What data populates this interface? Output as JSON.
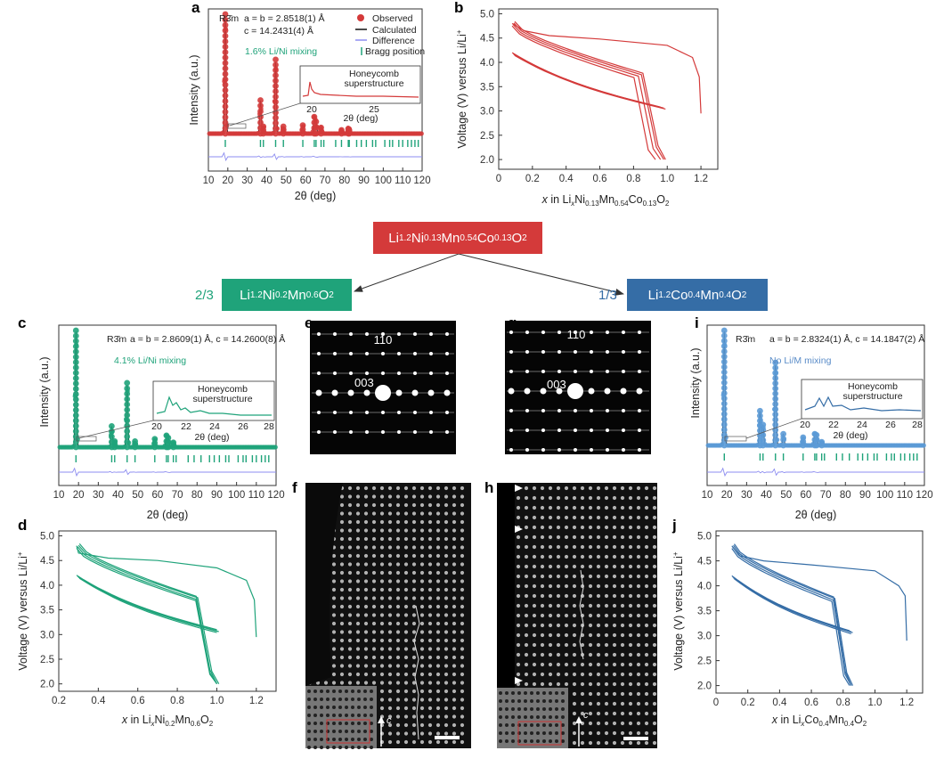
{
  "panel_labels": {
    "a": "a",
    "b": "b",
    "c": "c",
    "d": "d",
    "e": "e",
    "f": "f",
    "g": "g",
    "h": "h",
    "i": "i",
    "j": "j"
  },
  "colors": {
    "red": "#d43a3a",
    "green": "#1fa37a",
    "blue": "#356da6",
    "diff": "#8e8ef0"
  },
  "schematic": {
    "parent": {
      "main": "Li",
      "s1": "1.2",
      "m2": "Ni",
      "s2": "0.13",
      "m3": "Mn",
      "s3": "0.54",
      "m4": "Co",
      "s4": "0.13",
      "m5": "O",
      "s5": "2"
    },
    "left": {
      "fraction": "2/3",
      "main": "Li",
      "s1": "1.2",
      "m2": "Ni",
      "s2": "0.2",
      "m3": "Mn",
      "s3": "0.6",
      "m4": "O",
      "s4": "2"
    },
    "right": {
      "fraction": "1/3",
      "main": "Li",
      "s1": "1.2",
      "m2": "Co",
      "s2": "0.4",
      "m3": "Mn",
      "s3": "0.4",
      "m4": "O",
      "s4": "2"
    }
  },
  "xrd_a": {
    "space_group": "R3̄m",
    "lattice_a": "a = b = 2.8518(1) Å",
    "lattice_c": "c = 14.2431(4) Å",
    "mixing": "1.6% Li/Ni mixing",
    "inset_title_1": "Honeycomb",
    "inset_title_2": "superstructure",
    "legend": [
      "Observed",
      "Calculated",
      "Difference",
      "Bragg position"
    ],
    "ylabel": "Intensity (a.u.)",
    "xlabel": "2θ (deg)",
    "inset_ticks": [
      "20",
      "25"
    ],
    "inset_xlabel": "2θ (deg)"
  },
  "xrd_c": {
    "space_group": "R3̄m",
    "lattice": "a = b = 2.8609(1) Å, c = 14.2600(8) Å",
    "mixing": "4.1% Li/Ni mixing",
    "inset_title_1": "Honeycomb",
    "inset_title_2": "superstructure",
    "ylabel": "Intensity (a.u.)",
    "xlabel": "2θ (deg)",
    "inset_ticks": [
      "20",
      "22",
      "24",
      "26",
      "28"
    ],
    "inset_xlabel": "2θ (deg)"
  },
  "xrd_i": {
    "space_group": "R3̄m",
    "lattice": "a = b = 2.8324(1) Å, c = 14.1847(2) Å",
    "mixing": "No Li/M mixing",
    "inset_title_1": "Honeycomb",
    "inset_title_2": "superstructure",
    "ylabel": "Intensity (a.u.)",
    "xlabel": "2θ (deg)",
    "inset_ticks": [
      "20",
      "22",
      "24",
      "26",
      "28"
    ],
    "inset_xlabel": "2θ (deg)"
  },
  "electron": {
    "e_110": "110",
    "e_003": "003",
    "g_110": "110",
    "g_003": "003",
    "f_axis": "c",
    "h_axis": "c"
  },
  "ylabel_voltage": "Voltage (V) versus Li/Li",
  "ylabel_sup": "+",
  "xlabels": {
    "b": {
      "pre": "x in Li",
      "sub1": "x",
      "m2": "Ni",
      "sub2": "0.13",
      "m3": "Mn",
      "sub3": "0.54",
      "m4": "Co",
      "sub4": "0.13",
      "m5": "O",
      "sub5": "2"
    },
    "d": {
      "pre": "x in Li",
      "sub1": "x",
      "m2": "Ni",
      "sub2": "0.2",
      "m3": "Mn",
      "sub3": "0.6",
      "m4": "O",
      "sub4": "2"
    },
    "j": {
      "pre": "x in Li",
      "sub1": "x",
      "m2": "Co",
      "sub2": "0.4",
      "m3": "Mn",
      "sub3": "0.4",
      "m4": "O",
      "sub4": "2"
    }
  },
  "chart_data": [
    {
      "id": "a",
      "type": "line",
      "xlim": [
        10,
        120
      ],
      "xticks": [
        "10",
        "20",
        "30",
        "40",
        "50",
        "60",
        "70",
        "80",
        "90",
        "100",
        "110",
        "120"
      ],
      "peaks": [
        [
          18.7,
          1.0
        ],
        [
          36.8,
          0.28
        ],
        [
          38.3,
          0.06
        ],
        [
          44.6,
          0.62
        ],
        [
          48.6,
          0.06
        ],
        [
          58.6,
          0.07
        ],
        [
          64.5,
          0.14
        ],
        [
          65.4,
          0.1
        ],
        [
          68.0,
          0.05
        ],
        [
          78.5,
          0.03
        ],
        [
          82.0,
          0.04
        ],
        [
          82.5,
          0.03
        ]
      ],
      "bragg": [
        18.7,
        36.8,
        38.3,
        44.6,
        48.6,
        58.6,
        64.5,
        65.4,
        68.0,
        69.4,
        75.5,
        78.5,
        82.0,
        82.5,
        86.3,
        88.7,
        91.3,
        94.5,
        96.1,
        100.8,
        103.3,
        104.8,
        108.0,
        110.0,
        112.6,
        114.5,
        116.3,
        118.0
      ]
    },
    {
      "id": "b",
      "type": "line",
      "xlim": [
        0,
        1.3
      ],
      "ylim": [
        1.8,
        5.1
      ],
      "xticks": [
        "0",
        "0.2",
        "0.4",
        "0.6",
        "0.8",
        "1.0",
        "1.2"
      ],
      "yticks": [
        "2.0",
        "2.5",
        "3.0",
        "3.5",
        "4.0",
        "4.5",
        "5.0"
      ],
      "cycle1_charge": [
        [
          1.2,
          2.95
        ],
        [
          1.19,
          3.7
        ],
        [
          1.15,
          4.1
        ],
        [
          1.0,
          4.35
        ],
        [
          0.6,
          4.48
        ],
        [
          0.3,
          4.55
        ],
        [
          0.15,
          4.65
        ],
        [
          0.08,
          4.8
        ]
      ],
      "discharge_end": [
        0.93,
        0.96,
        0.98,
        0.99
      ]
    },
    {
      "id": "c",
      "type": "line",
      "xlim": [
        10,
        120
      ],
      "xticks": [
        "10",
        "20",
        "30",
        "40",
        "50",
        "60",
        "70",
        "80",
        "90",
        "100",
        "110",
        "120"
      ],
      "peaks": [
        [
          18.7,
          1.0
        ],
        [
          36.8,
          0.18
        ],
        [
          38.3,
          0.05
        ],
        [
          44.6,
          0.55
        ],
        [
          48.6,
          0.05
        ],
        [
          58.6,
          0.07
        ],
        [
          64.5,
          0.1
        ],
        [
          65.4,
          0.08
        ],
        [
          68.0,
          0.04
        ]
      ],
      "bragg": [
        18.7,
        36.8,
        38.3,
        44.6,
        48.6,
        58.6,
        64.5,
        65.4,
        68.0,
        69.4,
        75.5,
        78.5,
        82.0,
        86.3,
        88.7,
        91.3,
        94.5,
        96.1,
        100.8,
        103.3,
        104.8,
        108.0,
        110.0,
        112.6,
        114.5,
        116.3
      ]
    },
    {
      "id": "d",
      "type": "line",
      "xlim": [
        0.2,
        1.3
      ],
      "ylim": [
        1.85,
        5.1
      ],
      "xticks": [
        "0.2",
        "0.4",
        "0.6",
        "0.8",
        "1.0",
        "1.2"
      ],
      "yticks": [
        "2.0",
        "2.5",
        "3.0",
        "3.5",
        "4.0",
        "4.5",
        "5.0"
      ],
      "cycle1_charge": [
        [
          1.2,
          2.95
        ],
        [
          1.19,
          3.7
        ],
        [
          1.15,
          4.1
        ],
        [
          1.0,
          4.35
        ],
        [
          0.7,
          4.5
        ],
        [
          0.45,
          4.55
        ],
        [
          0.3,
          4.65
        ],
        [
          0.29,
          4.8
        ]
      ],
      "discharge_end": [
        1.0,
        1.0,
        1.01,
        1.0
      ]
    },
    {
      "id": "i",
      "type": "line",
      "xlim": [
        10,
        120
      ],
      "xticks": [
        "10",
        "20",
        "30",
        "40",
        "50",
        "60",
        "70",
        "80",
        "90",
        "100",
        "110",
        "120"
      ],
      "peaks": [
        [
          18.7,
          1.0
        ],
        [
          36.8,
          0.3
        ],
        [
          38.3,
          0.18
        ],
        [
          44.6,
          0.72
        ],
        [
          48.6,
          0.1
        ],
        [
          58.6,
          0.07
        ],
        [
          64.5,
          0.1
        ],
        [
          65.4,
          0.09
        ],
        [
          68.0,
          0.03
        ]
      ],
      "bragg": [
        18.7,
        36.8,
        38.3,
        44.6,
        48.6,
        58.6,
        64.5,
        65.4,
        68.0,
        69.4,
        75.5,
        78.5,
        82.0,
        86.3,
        88.7,
        91.3,
        94.5,
        96.1,
        100.8,
        103.3,
        104.8,
        108.0,
        110.0,
        112.6,
        114.5,
        116.3
      ]
    },
    {
      "id": "j",
      "type": "line",
      "xlim": [
        0,
        1.3
      ],
      "ylim": [
        1.85,
        5.1
      ],
      "xticks": [
        "0",
        "0.2",
        "0.4",
        "0.6",
        "0.8",
        "1.0",
        "1.2"
      ],
      "yticks": [
        "2.0",
        "2.5",
        "3.0",
        "3.5",
        "4.0",
        "4.5",
        "5.0"
      ],
      "cycle1_charge": [
        [
          1.2,
          2.9
        ],
        [
          1.19,
          3.8
        ],
        [
          1.15,
          4.0
        ],
        [
          1.0,
          4.3
        ],
        [
          0.6,
          4.42
        ],
        [
          0.3,
          4.5
        ],
        [
          0.15,
          4.6
        ],
        [
          0.1,
          4.8
        ]
      ],
      "discharge_end": [
        0.84,
        0.85,
        0.86,
        0.85
      ]
    }
  ]
}
